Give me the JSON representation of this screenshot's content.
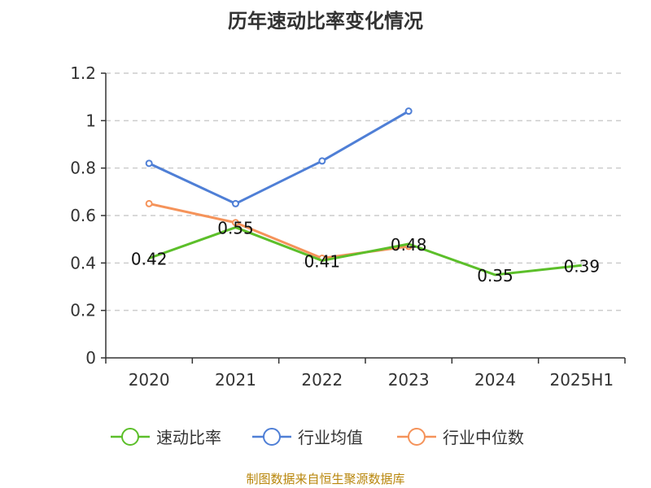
{
  "title": "历年速动比率变化情况",
  "source": "制图数据来自恒生聚源数据库",
  "chart_data": {
    "type": "line",
    "categories": [
      "2020",
      "2021",
      "2022",
      "2023",
      "2024",
      "2025H1"
    ],
    "yticks": [
      "0",
      "0.2",
      "0.4",
      "0.6",
      "0.8",
      "1",
      "1.2"
    ],
    "ylim": [
      0,
      1.2
    ],
    "grid": true,
    "legend_position": "bottom",
    "series": [
      {
        "name": "速动比率",
        "color": "#5cbf2a",
        "values": [
          0.42,
          0.55,
          0.41,
          0.48,
          0.35,
          0.39
        ],
        "labels": [
          "0.42",
          "0.55",
          "0.41",
          "0.48",
          "0.35",
          "0.39"
        ],
        "show_markers": false
      },
      {
        "name": "行业均值",
        "color": "#4f7fd6",
        "values": [
          0.82,
          0.65,
          0.83,
          1.04,
          null,
          null
        ],
        "show_markers": true
      },
      {
        "name": "行业中位数",
        "color": "#f5935a",
        "values": [
          0.65,
          0.57,
          0.42,
          0.47,
          null,
          null
        ],
        "show_markers": true
      }
    ]
  }
}
